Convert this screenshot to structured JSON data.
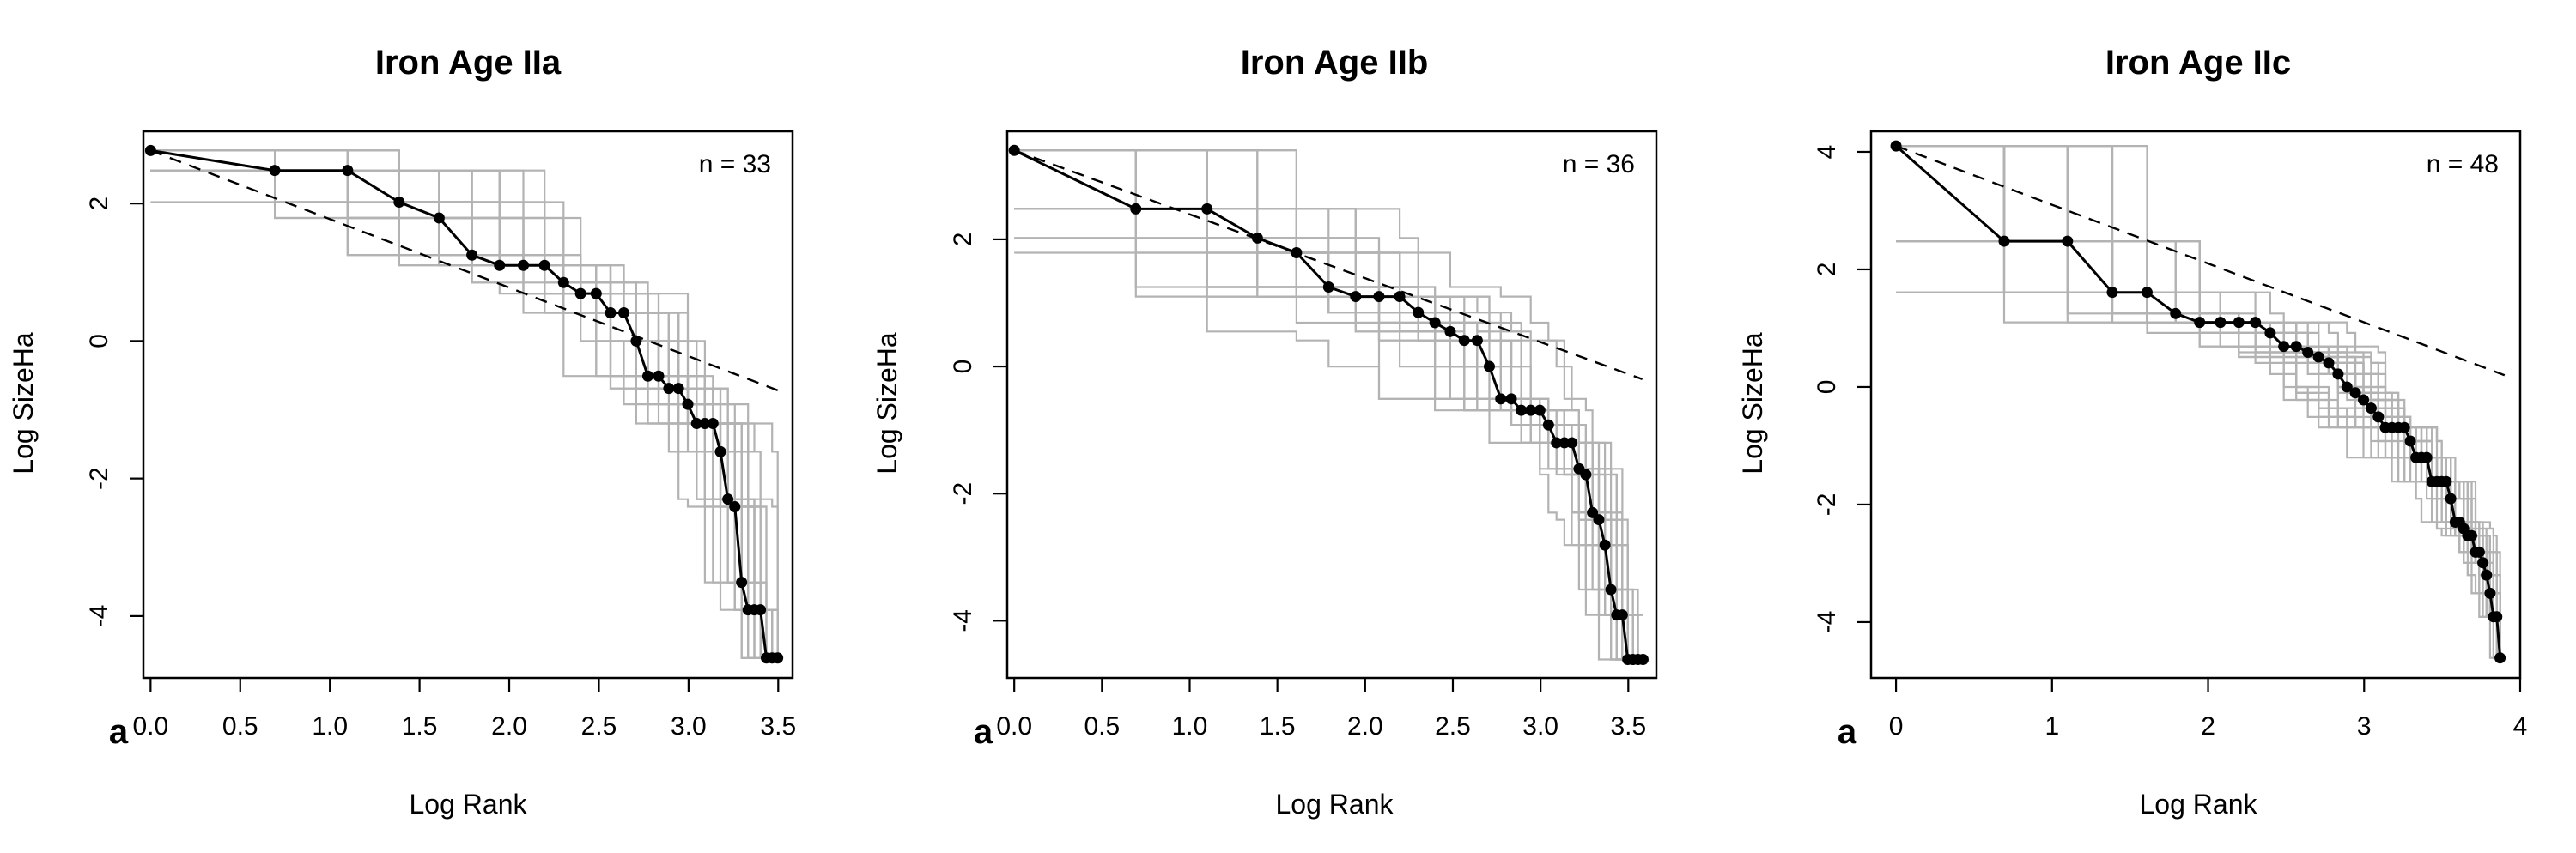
{
  "chart_data": [
    {
      "type": "line",
      "title": "Iron Age IIa",
      "xlabel": "Log Rank",
      "ylabel": "Log SizeHa",
      "panel_tag": "a",
      "n_label": "n = 33",
      "xlim": [
        -0.04,
        3.58
      ],
      "ylim": [
        -4.9,
        3.05
      ],
      "xticks": [
        0.0,
        0.5,
        1.0,
        1.5,
        2.0,
        2.5,
        3.0,
        3.5
      ],
      "xtick_labels": [
        "0.0",
        "0.5",
        "1.0",
        "1.5",
        "2.0",
        "2.5",
        "3.0",
        "3.5"
      ],
      "yticks": [
        -4,
        -2,
        0,
        2
      ],
      "ytick_labels": [
        "-4",
        "-2",
        "0",
        "2"
      ],
      "grid": false,
      "observed": {
        "x": [
          0,
          0.693,
          1.099,
          1.386,
          1.609,
          1.792,
          1.946,
          2.079,
          2.197,
          2.303,
          2.398,
          2.485,
          2.565,
          2.639,
          2.708,
          2.773,
          2.833,
          2.89,
          2.944,
          2.996,
          3.045,
          3.091,
          3.136,
          3.178,
          3.219,
          3.258,
          3.296,
          3.332,
          3.367,
          3.401,
          3.434,
          3.466,
          3.497
        ],
        "y": [
          2.77,
          2.48,
          2.48,
          2.02,
          1.79,
          1.25,
          1.1,
          1.1,
          1.1,
          0.85,
          0.69,
          0.69,
          0.41,
          0.41,
          0.0,
          -0.51,
          -0.51,
          -0.69,
          -0.69,
          -0.92,
          -1.2,
          -1.2,
          -1.2,
          -1.61,
          -2.3,
          -2.41,
          -3.51,
          -3.91,
          -3.91,
          -3.91,
          -4.61,
          -4.61,
          -4.61
        ]
      },
      "reference_line": {
        "x": [
          0,
          3.5
        ],
        "y": [
          2.77,
          -0.72
        ]
      },
      "simulations": {
        "count": 40
      }
    },
    {
      "type": "line",
      "title": "Iron Age IIb",
      "xlabel": "Log Rank",
      "ylabel": "Log SizeHa",
      "panel_tag": "a",
      "n_label": "n = 36",
      "xlim": [
        -0.04,
        3.66
      ],
      "ylim": [
        -4.9,
        3.7
      ],
      "xticks": [
        0.0,
        0.5,
        1.0,
        1.5,
        2.0,
        2.5,
        3.0,
        3.5
      ],
      "xtick_labels": [
        "0.0",
        "0.5",
        "1.0",
        "1.5",
        "2.0",
        "2.5",
        "3.0",
        "3.5"
      ],
      "yticks": [
        -4,
        -2,
        0,
        2
      ],
      "ytick_labels": [
        "-4",
        "-2",
        "0",
        "2"
      ],
      "grid": false,
      "observed": {
        "x": [
          0,
          0.693,
          1.099,
          1.386,
          1.609,
          1.792,
          1.946,
          2.079,
          2.197,
          2.303,
          2.398,
          2.485,
          2.565,
          2.639,
          2.708,
          2.773,
          2.833,
          2.89,
          2.944,
          2.996,
          3.045,
          3.091,
          3.136,
          3.178,
          3.219,
          3.258,
          3.296,
          3.332,
          3.367,
          3.401,
          3.434,
          3.466,
          3.497,
          3.526,
          3.555,
          3.584
        ],
        "y": [
          3.4,
          2.48,
          2.48,
          2.02,
          1.79,
          1.25,
          1.1,
          1.1,
          1.1,
          0.85,
          0.69,
          0.55,
          0.41,
          0.41,
          0.0,
          -0.51,
          -0.51,
          -0.69,
          -0.69,
          -0.69,
          -0.92,
          -1.2,
          -1.2,
          -1.2,
          -1.61,
          -1.7,
          -2.3,
          -2.41,
          -2.81,
          -3.51,
          -3.91,
          -3.91,
          -4.61,
          -4.61,
          -4.61,
          -4.61
        ]
      },
      "reference_line": {
        "x": [
          0,
          3.58
        ],
        "y": [
          3.4,
          -0.2
        ]
      },
      "simulations": {
        "count": 40
      }
    },
    {
      "type": "line",
      "title": "Iron Age IIc",
      "xlabel": "Log Rank",
      "ylabel": "Log SizeHa",
      "panel_tag": "a",
      "n_label": "n = 48",
      "xlim": [
        -0.16,
        4.0
      ],
      "ylim": [
        -4.95,
        4.35
      ],
      "xticks": [
        0,
        1,
        2,
        3,
        4
      ],
      "xtick_labels": [
        "0",
        "1",
        "2",
        "3",
        "4"
      ],
      "yticks": [
        -4,
        -2,
        0,
        2,
        4
      ],
      "ytick_labels": [
        "-4",
        "-2",
        "0",
        "2",
        "4"
      ],
      "grid": false,
      "observed": {
        "x": [
          0,
          0.693,
          1.099,
          1.386,
          1.609,
          1.792,
          1.946,
          2.079,
          2.197,
          2.303,
          2.398,
          2.485,
          2.565,
          2.639,
          2.708,
          2.773,
          2.833,
          2.89,
          2.944,
          2.996,
          3.045,
          3.091,
          3.136,
          3.178,
          3.219,
          3.258,
          3.296,
          3.332,
          3.367,
          3.401,
          3.434,
          3.466,
          3.497,
          3.526,
          3.555,
          3.584,
          3.611,
          3.638,
          3.664,
          3.689,
          3.714,
          3.738,
          3.761,
          3.784,
          3.807,
          3.829,
          3.85,
          3.871
        ],
        "y": [
          4.1,
          2.48,
          2.48,
          1.61,
          1.61,
          1.25,
          1.1,
          1.1,
          1.1,
          1.1,
          0.92,
          0.69,
          0.69,
          0.59,
          0.51,
          0.41,
          0.22,
          0.0,
          -0.1,
          -0.22,
          -0.36,
          -0.51,
          -0.69,
          -0.69,
          -0.69,
          -0.69,
          -0.92,
          -1.2,
          -1.2,
          -1.2,
          -1.61,
          -1.61,
          -1.61,
          -1.61,
          -1.9,
          -2.3,
          -2.3,
          -2.41,
          -2.53,
          -2.53,
          -2.81,
          -2.81,
          -2.99,
          -3.2,
          -3.51,
          -3.91,
          -3.91,
          -4.61
        ]
      },
      "reference_line": {
        "x": [
          0,
          3.9
        ],
        "y": [
          4.1,
          0.2
        ]
      },
      "simulations": {
        "count": 40
      }
    }
  ]
}
